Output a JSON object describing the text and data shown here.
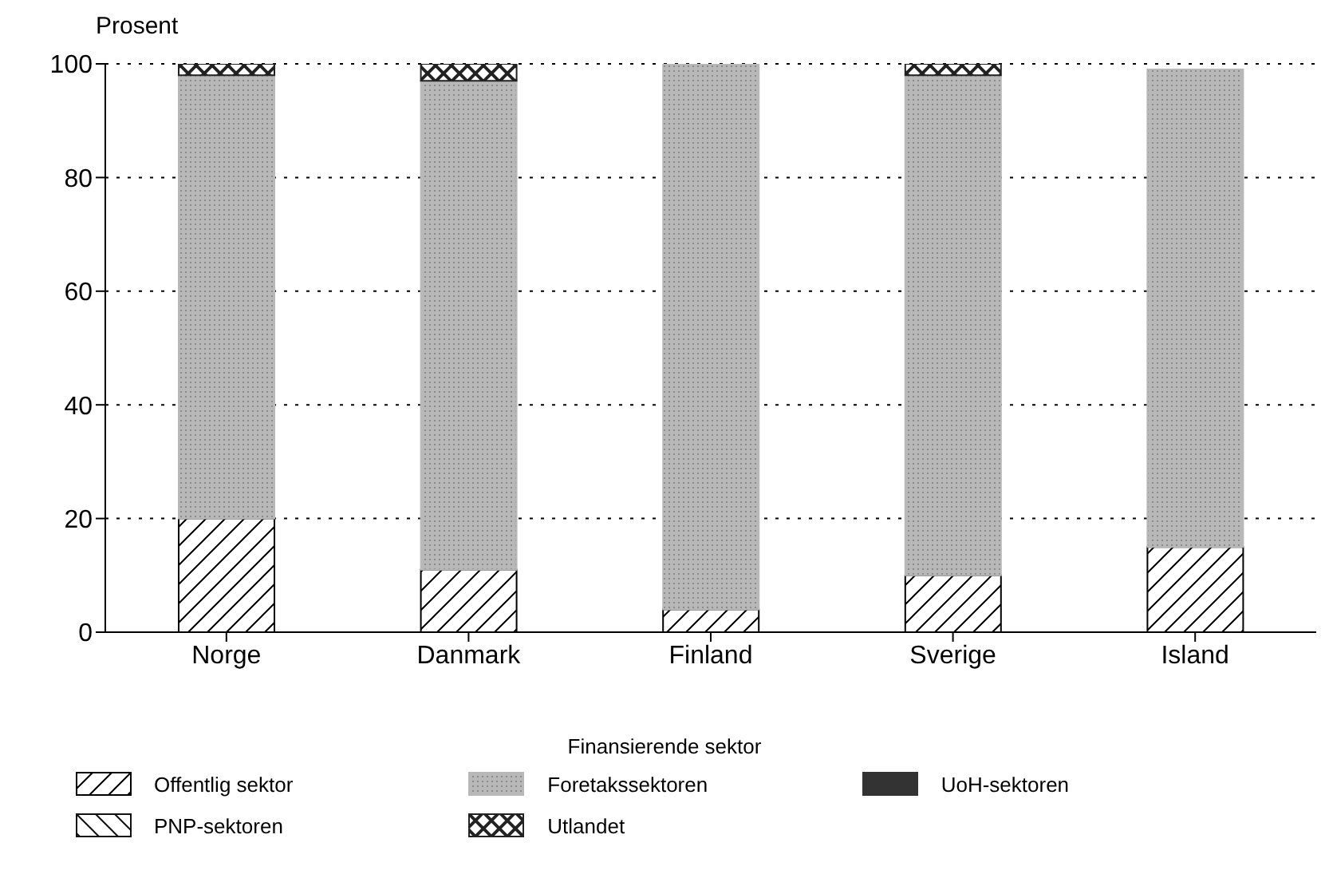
{
  "chart_data": {
    "type": "bar",
    "stacked": true,
    "ylabel": "Prosent",
    "legend_title": "Finansierende sektor",
    "categories": [
      "Norge",
      "Danmark",
      "Finland",
      "Sverige",
      "Island"
    ],
    "series": [
      {
        "name": "Offentlig sektor",
        "color": "#000000",
        "values": [
          20,
          11,
          4,
          10,
          15
        ]
      },
      {
        "name": "Foretakssektoren",
        "color": "#b8b8b8",
        "values": [
          78,
          86,
          96,
          88,
          84
        ]
      },
      {
        "name": "UoH-sektoren",
        "color": "#333333",
        "values": [
          0,
          0,
          0,
          0,
          0
        ]
      },
      {
        "name": "PNP-sektoren",
        "color": "#111111",
        "values": [
          0,
          0,
          0,
          0,
          0
        ]
      },
      {
        "name": "Utlandet",
        "color": "#222222",
        "values": [
          2,
          3,
          0,
          2,
          0
        ]
      }
    ],
    "ylim": [
      0,
      100
    ],
    "yticks": [
      0,
      20,
      40,
      60,
      80,
      100
    ],
    "grid": "y",
    "legend": "bottom"
  }
}
